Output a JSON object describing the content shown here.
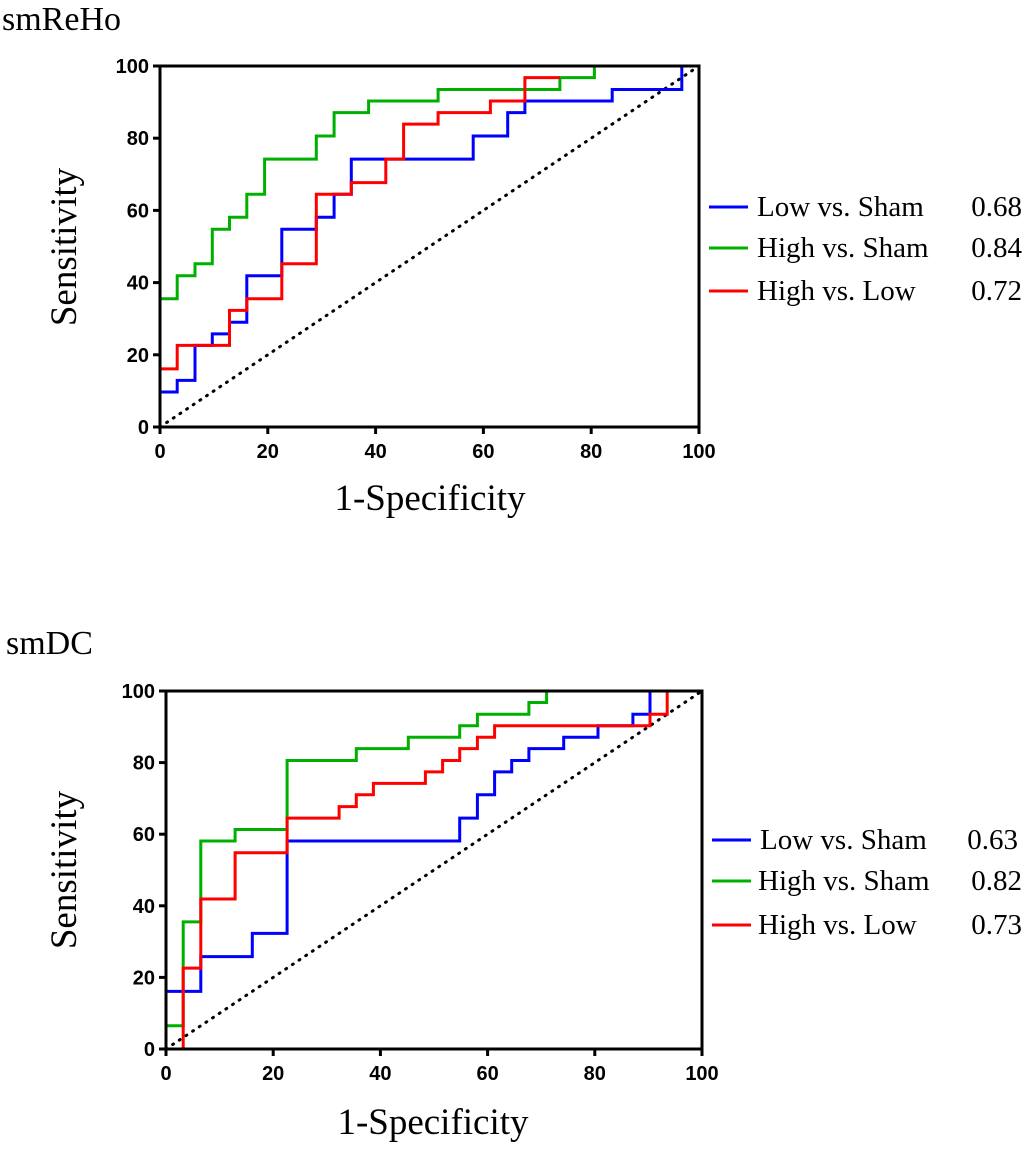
{
  "chart_data": [
    {
      "type": "line",
      "title": "smReHo",
      "xlabel": "1-Specificity",
      "ylabel": "Sensitivity",
      "xlim": [
        0,
        100
      ],
      "ylim": [
        0,
        100
      ],
      "xticks": [
        "0",
        "20",
        "40",
        "60",
        "80",
        "100"
      ],
      "yticks": [
        "0",
        "20",
        "40",
        "60",
        "80",
        "100"
      ],
      "reference_line": "diagonal (dotted)",
      "legend_position": "right",
      "series": [
        {
          "name": "Low vs. Sham",
          "auc": "0.68",
          "color": "#0000ff",
          "x": [
            0,
            0,
            3.2,
            3.2,
            6.5,
            6.5,
            9.7,
            9.7,
            12.9,
            12.9,
            16.1,
            16.1,
            22.6,
            22.6,
            29.0,
            29.0,
            32.3,
            32.3,
            35.5,
            35.5,
            58.1,
            58.1,
            64.5,
            64.5,
            67.7,
            67.7,
            83.9,
            83.9,
            96.8,
            96.8,
            100
          ],
          "y": [
            0,
            9.7,
            9.7,
            12.9,
            12.9,
            22.6,
            22.6,
            25.8,
            25.8,
            29.0,
            29.0,
            41.9,
            41.9,
            54.8,
            54.8,
            58.1,
            58.1,
            64.5,
            64.5,
            74.2,
            74.2,
            80.6,
            80.6,
            87.1,
            87.1,
            90.3,
            90.3,
            93.5,
            93.5,
            100,
            100
          ]
        },
        {
          "name": "High vs. Sham",
          "auc": "0.84",
          "color": "#00b000",
          "x": [
            0,
            0,
            3.2,
            3.2,
            6.5,
            6.5,
            9.7,
            9.7,
            12.9,
            12.9,
            16.1,
            16.1,
            19.4,
            19.4,
            29.0,
            29.0,
            32.3,
            32.3,
            38.7,
            38.7,
            51.6,
            51.6,
            74.2,
            74.2,
            80.6,
            80.6,
            100
          ],
          "y": [
            0,
            35.5,
            35.5,
            41.9,
            41.9,
            45.2,
            45.2,
            54.8,
            54.8,
            58.1,
            58.1,
            64.5,
            64.5,
            74.2,
            74.2,
            80.6,
            80.6,
            87.1,
            87.1,
            90.3,
            90.3,
            93.5,
            93.5,
            96.8,
            96.8,
            100,
            100
          ]
        },
        {
          "name": "High vs. Low",
          "auc": "0.72",
          "color": "#ff0000",
          "x": [
            0,
            0,
            3.2,
            3.2,
            12.9,
            12.9,
            16.1,
            16.1,
            22.6,
            22.6,
            29.0,
            29.0,
            35.5,
            35.5,
            41.9,
            41.9,
            45.2,
            45.2,
            51.6,
            51.6,
            61.3,
            61.3,
            67.7,
            67.7,
            74.2
          ],
          "y": [
            0,
            16.1,
            16.1,
            22.6,
            22.6,
            32.3,
            32.3,
            35.5,
            35.5,
            45.2,
            45.2,
            64.5,
            64.5,
            67.7,
            67.7,
            74.2,
            74.2,
            83.9,
            83.9,
            87.1,
            87.1,
            90.3,
            90.3,
            96.8,
            96.8
          ]
        }
      ]
    },
    {
      "type": "line",
      "title": "smDC",
      "xlabel": "1-Specificity",
      "ylabel": "Sensitivity",
      "xlim": [
        0,
        100
      ],
      "ylim": [
        0,
        100
      ],
      "xticks": [
        "0",
        "20",
        "40",
        "60",
        "80",
        "100"
      ],
      "yticks": [
        "0",
        "20",
        "40",
        "60",
        "80",
        "100"
      ],
      "reference_line": "diagonal (dotted)",
      "legend_position": "right",
      "series": [
        {
          "name": "Low vs. Sham",
          "auc": "0.63",
          "color": "#0000ff",
          "x": [
            0,
            0,
            6.5,
            6.5,
            16.1,
            16.1,
            22.6,
            22.6,
            54.8,
            54.8,
            58.1,
            58.1,
            61.3,
            61.3,
            64.5,
            64.5,
            67.7,
            67.7,
            74.2,
            74.2,
            80.6,
            80.6,
            87.1,
            87.1,
            90.3,
            90.3,
            100
          ],
          "y": [
            0,
            16.1,
            16.1,
            25.8,
            25.8,
            32.3,
            32.3,
            58.1,
            58.1,
            64.5,
            64.5,
            71.0,
            71.0,
            77.4,
            77.4,
            80.6,
            80.6,
            83.9,
            83.9,
            87.1,
            87.1,
            90.3,
            90.3,
            93.5,
            93.5,
            100,
            100
          ]
        },
        {
          "name": "High vs. Sham",
          "auc": "0.82",
          "color": "#00b000",
          "x": [
            0,
            3.2,
            3.2,
            6.5,
            6.5,
            12.9,
            12.9,
            22.6,
            22.6,
            35.5,
            35.5,
            45.2,
            45.2,
            54.8,
            54.8,
            58.1,
            58.1,
            67.7,
            67.7,
            71.0,
            71.0,
            100
          ],
          "y": [
            6.5,
            6.5,
            35.5,
            35.5,
            58.1,
            58.1,
            61.3,
            61.3,
            80.6,
            80.6,
            83.9,
            83.9,
            87.1,
            87.1,
            90.3,
            90.3,
            93.5,
            93.5,
            96.8,
            96.8,
            100,
            100
          ]
        },
        {
          "name": "High vs. Low",
          "auc": "0.73",
          "color": "#ff0000",
          "x": [
            0,
            3.2,
            3.2,
            6.5,
            6.5,
            12.9,
            12.9,
            22.6,
            22.6,
            32.3,
            32.3,
            35.5,
            35.5,
            38.7,
            38.7,
            48.4,
            48.4,
            51.6,
            51.6,
            54.8,
            54.8,
            58.1,
            58.1,
            61.3,
            61.3,
            90.3,
            90.3,
            93.5,
            93.5
          ],
          "y": [
            0,
            0,
            22.6,
            22.6,
            41.9,
            41.9,
            54.8,
            54.8,
            64.5,
            64.5,
            67.7,
            67.7,
            71.0,
            71.0,
            74.2,
            74.2,
            77.4,
            77.4,
            80.6,
            80.6,
            83.9,
            83.9,
            87.1,
            87.1,
            90.3,
            90.3,
            93.5,
            93.5,
            100
          ]
        }
      ]
    }
  ]
}
